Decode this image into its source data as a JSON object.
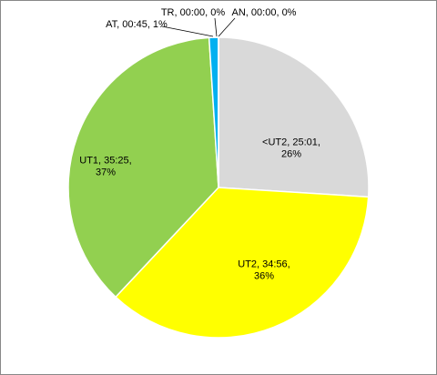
{
  "chart_data": {
    "type": "pie",
    "values": [
      26,
      36,
      37,
      1,
      0,
      0
    ],
    "value_labels": [
      "<UT2, 25:01, 26%",
      "UT2, 34:56, 36%",
      "UT1, 35:25, 37%",
      "AT, 00:45, 1%",
      "TR, 00:00, 0%",
      "AN, 00:00, 0%"
    ],
    "colors": [
      "#d9d9d9",
      "#ffff00",
      "#92d050",
      "#00b0f0",
      "#7f7f7f",
      "#4472c4"
    ]
  }
}
